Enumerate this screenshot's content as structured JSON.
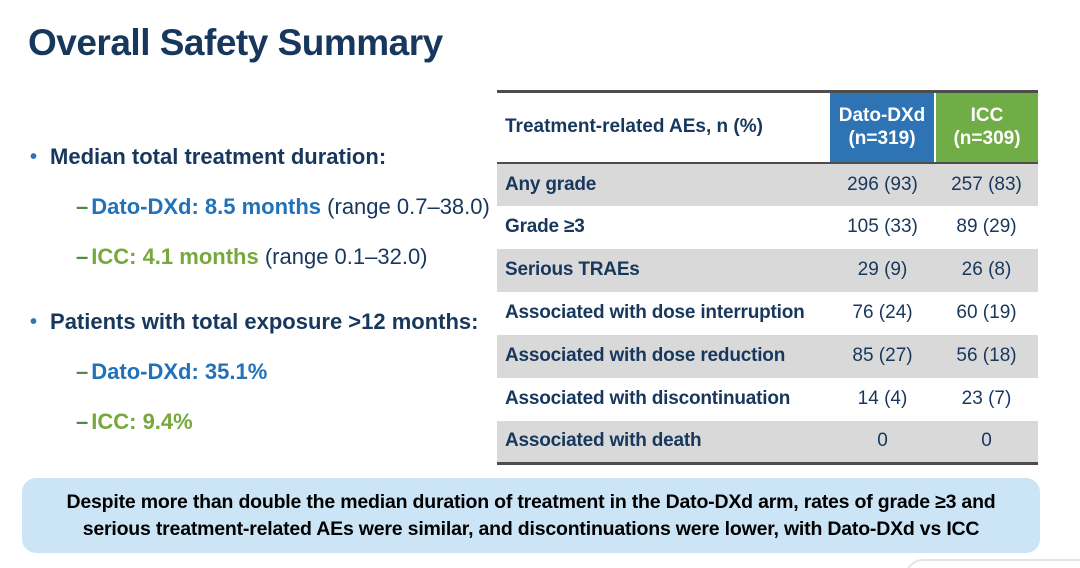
{
  "title": "Overall Safety Summary",
  "colors": {
    "navy_text": "#17375D",
    "blue_accent": "#2E74B5",
    "blue_text": "#2272B9",
    "green_header": "#70AD47",
    "green_text": "#76A83C",
    "row_gray": "#D9D9D9",
    "callout_bg": "#CBE5F6",
    "table_border": "#4D4D4D"
  },
  "bullets": {
    "b1": {
      "label": "Median total treatment duration:",
      "sub1": {
        "main": "Dato-DXd: 8.5 months",
        "range": "(range 0.7–38.0)"
      },
      "sub2": {
        "main": "ICC: 4.1 months",
        "range": "(range 0.1–32.0)"
      }
    },
    "b2": {
      "label": "Patients with total exposure >12 months:",
      "sub1": {
        "main": "Dato-DXd: 35.1%"
      },
      "sub2": {
        "main": "ICC: 9.4%"
      }
    }
  },
  "table": {
    "header": {
      "col1": "Treatment-related AEs, n (%)",
      "col2": {
        "line1": "Dato-DXd",
        "line2": "(n=319)"
      },
      "col3": {
        "line1": "ICC",
        "line2": "(n=309)"
      }
    },
    "rows": [
      {
        "label": "Any grade",
        "dato": "296 (93)",
        "icc": "257 (83)"
      },
      {
        "label": "Grade ≥3",
        "dato": "105 (33)",
        "icc": "89 (29)"
      },
      {
        "label": "Serious TRAEs",
        "dato": "29 (9)",
        "icc": "26 (8)"
      },
      {
        "label": "Associated with dose interruption",
        "dato": "76 (24)",
        "icc": "60 (19)"
      },
      {
        "label": "Associated with dose reduction",
        "dato": "85 (27)",
        "icc": "56 (18)"
      },
      {
        "label": "Associated with discontinuation",
        "dato": "14 (4)",
        "icc": "23 (7)"
      },
      {
        "label": "Associated with death",
        "dato": "0",
        "icc": "0"
      }
    ]
  },
  "callout": {
    "text": "Despite more than double the median duration of treatment in the Dato-DXd arm, rates of grade ≥3 and serious treatment-related AEs were similar, and discontinuations were lower, with Dato-DXd vs ICC"
  }
}
